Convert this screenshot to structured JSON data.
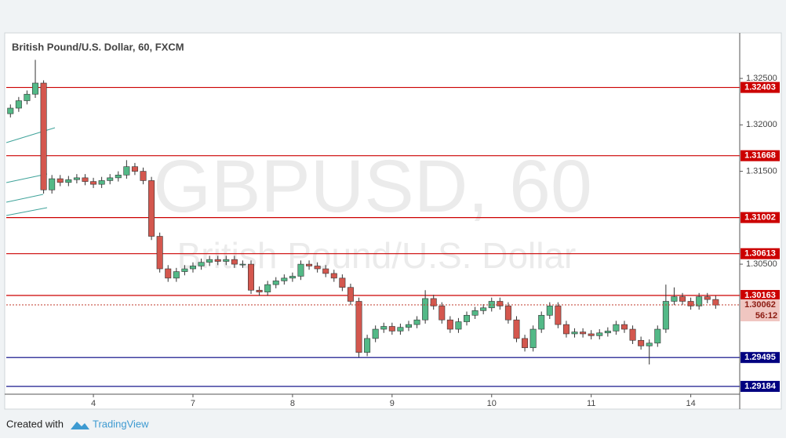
{
  "chart_data": {
    "type": "candlestick",
    "title": "British Pound/U.S. Dollar, 60, FXCM",
    "watermark": "GBPUSD, 60",
    "watermark_subtitle": "British Pound/U.S. Dollar",
    "footer": {
      "prefix": "Created with",
      "brand": "TradingView"
    },
    "up_color": "#53b987",
    "down_color": "#d4574e",
    "xlim": [
      0,
      88.4
    ],
    "xticks": [
      {
        "value": 10.5,
        "label": "4"
      },
      {
        "value": 22.5,
        "label": "7"
      },
      {
        "value": 34.5,
        "label": "8"
      },
      {
        "value": 46.5,
        "label": "9"
      },
      {
        "value": 58.5,
        "label": "10"
      },
      {
        "value": 70.5,
        "label": "11"
      },
      {
        "value": 82.5,
        "label": "14"
      }
    ],
    "ylim": [
      1.291,
      1.3299
    ],
    "yticks": [
      {
        "value": 1.325,
        "label": "1.32500"
      },
      {
        "value": 1.32,
        "label": "1.32000"
      },
      {
        "value": 1.315,
        "label": "1.31500"
      },
      {
        "value": 1.305,
        "label": "1.30500"
      }
    ],
    "levels": [
      {
        "value": 1.32403,
        "color": "#cc0000"
      },
      {
        "value": 1.31668,
        "color": "#cc0000"
      },
      {
        "value": 1.31002,
        "color": "#cc0000"
      },
      {
        "value": 1.30613,
        "color": "#cc0000"
      },
      {
        "value": 1.30163,
        "color": "#cc0000"
      },
      {
        "value": 1.29495,
        "color": "#000080"
      },
      {
        "value": 1.29184,
        "color": "#000080"
      }
    ],
    "last_price": 1.30062,
    "countdown": "56:12",
    "open": [
      1.3212,
      1.3218,
      1.3226,
      1.3233,
      1.3245,
      1.313,
      1.3142,
      1.3138,
      1.3141,
      1.3143,
      1.3139,
      1.3136,
      1.314,
      1.3143,
      1.3146,
      1.3155,
      1.315,
      1.314,
      1.308,
      1.3045,
      1.3035,
      1.3042,
      1.3045,
      1.3048,
      1.3052,
      1.3055,
      1.3053,
      1.3055,
      1.305,
      1.305,
      1.3022,
      1.302,
      1.3028,
      1.3032,
      1.3035,
      1.3037,
      1.305,
      1.3048,
      1.3045,
      1.304,
      1.3035,
      1.3025,
      1.301,
      1.2955,
      1.297,
      1.298,
      1.2983,
      1.2978,
      1.2982,
      1.2985,
      1.299,
      1.3013,
      1.3005,
      1.299,
      1.298,
      1.2988,
      1.2995,
      1.3,
      1.3003,
      1.301,
      1.3005,
      1.299,
      1.297,
      1.296,
      1.298,
      1.2995,
      1.3005,
      1.2985,
      1.2975,
      1.2977,
      1.2975,
      1.2973,
      1.2976,
      1.2978,
      1.2985,
      1.298,
      1.2968,
      1.2962,
      1.2965,
      1.298,
      1.301,
      1.3015,
      1.301,
      1.3005,
      1.3015,
      1.3012
    ],
    "high": [
      1.3222,
      1.323,
      1.3237,
      1.327,
      1.3248,
      1.3146,
      1.3146,
      1.3145,
      1.3147,
      1.3147,
      1.3143,
      1.3144,
      1.3147,
      1.315,
      1.3162,
      1.3159,
      1.3154,
      1.3144,
      1.3084,
      1.3049,
      1.3046,
      1.3049,
      1.3052,
      1.3056,
      1.3059,
      1.3059,
      1.3059,
      1.3059,
      1.3054,
      1.3054,
      1.3026,
      1.3032,
      1.3036,
      1.3039,
      1.3041,
      1.3054,
      1.3054,
      1.3052,
      1.3049,
      1.3044,
      1.3039,
      1.3029,
      1.3014,
      1.2974,
      1.2984,
      1.2987,
      1.2987,
      1.2986,
      1.2989,
      1.2994,
      1.3022,
      1.3017,
      1.3009,
      1.2994,
      1.2992,
      1.2999,
      1.3004,
      1.3007,
      1.3014,
      1.3014,
      1.3009,
      1.2994,
      1.2974,
      1.2984,
      1.2999,
      1.3009,
      1.3009,
      1.2989,
      1.2981,
      1.2981,
      1.2979,
      1.298,
      1.2982,
      1.2989,
      1.2989,
      1.2984,
      1.2972,
      1.2969,
      1.2984,
      1.3028,
      1.3025,
      1.3019,
      1.3014,
      1.3019,
      1.3019,
      1.3016
    ],
    "low": [
      1.3208,
      1.3214,
      1.3222,
      1.3229,
      1.3126,
      1.3126,
      1.3134,
      1.3134,
      1.3137,
      1.3135,
      1.3132,
      1.3132,
      1.3136,
      1.3139,
      1.3142,
      1.3146,
      1.3136,
      1.3076,
      1.3041,
      1.3031,
      1.3031,
      1.3038,
      1.3041,
      1.3044,
      1.3048,
      1.3049,
      1.3049,
      1.3046,
      1.3046,
      1.3018,
      1.3016,
      1.3016,
      1.3024,
      1.3028,
      1.3031,
      1.3033,
      1.3044,
      1.3041,
      1.3036,
      1.3031,
      1.3021,
      1.3006,
      1.295,
      1.2951,
      1.2966,
      1.2976,
      1.2974,
      1.2974,
      1.2978,
      1.2981,
      1.2986,
      1.3001,
      1.2986,
      1.2976,
      1.2976,
      1.2984,
      1.2991,
      1.2996,
      1.2999,
      1.3001,
      1.2986,
      1.2966,
      1.2956,
      1.2956,
      1.2976,
      1.2991,
      1.2981,
      1.2971,
      1.2971,
      1.2971,
      1.2969,
      1.2969,
      1.2972,
      1.2974,
      1.2976,
      1.2964,
      1.2958,
      1.2942,
      1.2961,
      1.2976,
      1.3006,
      1.3006,
      1.3001,
      1.3001,
      1.3008,
      1.3002
    ],
    "close": [
      1.3218,
      1.3226,
      1.3233,
      1.3245,
      1.313,
      1.3142,
      1.3138,
      1.3141,
      1.3143,
      1.3139,
      1.3136,
      1.314,
      1.3143,
      1.3146,
      1.3155,
      1.315,
      1.314,
      1.308,
      1.3045,
      1.3035,
      1.3042,
      1.3045,
      1.3048,
      1.3052,
      1.3055,
      1.3053,
      1.3055,
      1.305,
      1.305,
      1.3022,
      1.302,
      1.3028,
      1.3032,
      1.3035,
      1.3037,
      1.305,
      1.3048,
      1.3045,
      1.304,
      1.3035,
      1.3025,
      1.301,
      1.2955,
      1.297,
      1.298,
      1.2983,
      1.2978,
      1.2982,
      1.2985,
      1.299,
      1.3013,
      1.3005,
      1.299,
      1.298,
      1.2988,
      1.2995,
      1.3,
      1.3003,
      1.301,
      1.3005,
      1.299,
      1.297,
      1.296,
      1.298,
      1.2995,
      1.3005,
      1.2985,
      1.2975,
      1.2977,
      1.2975,
      1.2973,
      1.2976,
      1.2978,
      1.2985,
      1.298,
      1.2968,
      1.2962,
      1.2965,
      1.298,
      1.301,
      1.3015,
      1.301,
      1.3005,
      1.3015,
      1.3012,
      1.3006
    ]
  }
}
